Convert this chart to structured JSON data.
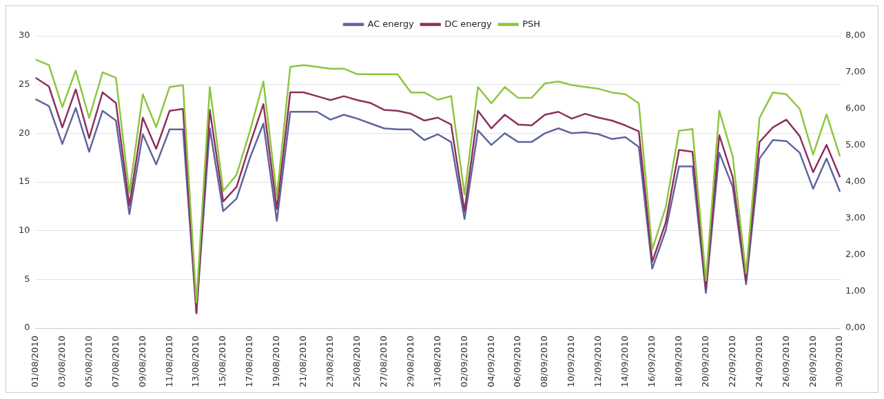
{
  "chart_data": {
    "type": "line",
    "categories": [
      "01/08/2010",
      null,
      "03/08/2010",
      null,
      "05/08/2010",
      null,
      "07/08/2010",
      null,
      "09/08/2010",
      null,
      "11/08/2010",
      null,
      "13/08/2010",
      null,
      "15/08/2010",
      null,
      "17/08/2010",
      null,
      "19/08/2010",
      null,
      "21/08/2010",
      null,
      "23/08/2010",
      null,
      "25/08/2010",
      null,
      "27/08/2010",
      null,
      "29/08/2010",
      null,
      "31/08/2010",
      null,
      "02/09/2010",
      null,
      "04/09/2010",
      null,
      "06/09/2010",
      null,
      "08/09/2010",
      null,
      "10/09/2010",
      null,
      "12/09/2010",
      null,
      "14/09/2010",
      null,
      "16/09/2010",
      null,
      "18/09/2010",
      null,
      "20/09/2010",
      null,
      "22/09/2010",
      null,
      "24/09/2010",
      null,
      "26/09/2010",
      null,
      "28/09/2010",
      null,
      "30/09/2010"
    ],
    "series": [
      {
        "name": "AC energy",
        "color": "#5d659c",
        "values": [
          23.5,
          22.8,
          18.9,
          22.6,
          18.1,
          22.3,
          21.3,
          11.7,
          19.9,
          16.8,
          20.4,
          20.4,
          1.5,
          20.5,
          12.0,
          13.3,
          17.5,
          21.0,
          11.0,
          22.2,
          22.2,
          22.2,
          21.4,
          21.9,
          21.5,
          21.0,
          20.5,
          20.4,
          20.4,
          19.3,
          19.9,
          19.1,
          11.2,
          20.3,
          18.8,
          20.0,
          19.1,
          19.1,
          20.0,
          20.5,
          20.0,
          20.1,
          19.9,
          19.4,
          19.6,
          18.6,
          6.1,
          10.0,
          16.6,
          16.6,
          3.6,
          18.0,
          14.5,
          4.5,
          17.4,
          19.3,
          19.2,
          18.0,
          14.3,
          17.4,
          14.0
        ]
      },
      {
        "name": "DC energy",
        "color": "#8e2f5e",
        "values": [
          25.7,
          24.8,
          20.6,
          24.5,
          19.5,
          24.2,
          23.1,
          12.6,
          21.6,
          18.4,
          22.3,
          22.5,
          1.6,
          22.4,
          13.0,
          14.5,
          18.9,
          23.0,
          12.2,
          24.2,
          24.2,
          23.8,
          23.4,
          23.8,
          23.4,
          23.1,
          22.4,
          22.3,
          22.0,
          21.3,
          21.6,
          20.9,
          12.0,
          22.3,
          20.5,
          21.9,
          20.9,
          20.8,
          21.9,
          22.2,
          21.5,
          22.0,
          21.6,
          21.3,
          20.8,
          20.2,
          6.8,
          10.8,
          18.3,
          18.1,
          4.0,
          19.8,
          15.5,
          4.9,
          19.1,
          20.6,
          21.4,
          19.7,
          16.0,
          18.8,
          15.5
        ]
      },
      {
        "name": "PSH",
        "color": "#8cc63f",
        "axis": "y2",
        "values": [
          7.35,
          7.2,
          6.05,
          7.05,
          5.75,
          7.0,
          6.85,
          3.7,
          6.4,
          5.5,
          6.6,
          6.65,
          0.7,
          6.6,
          3.75,
          4.2,
          5.4,
          6.75,
          3.6,
          7.15,
          7.2,
          7.15,
          7.1,
          7.1,
          6.95,
          6.95,
          6.95,
          6.95,
          6.45,
          6.45,
          6.25,
          6.35,
          3.65,
          6.6,
          6.15,
          6.6,
          6.3,
          6.3,
          6.7,
          6.75,
          6.65,
          6.6,
          6.55,
          6.45,
          6.4,
          6.15,
          2.15,
          3.3,
          5.4,
          5.45,
          1.3,
          5.95,
          4.7,
          1.5,
          5.75,
          6.45,
          6.4,
          6.0,
          4.75,
          5.85,
          4.7
        ]
      }
    ],
    "ylim": [
      0,
      30
    ],
    "yticks": [
      0,
      5,
      10,
      15,
      20,
      25,
      30
    ],
    "y2lim": [
      0,
      8
    ],
    "y2ticks": [
      {
        "value": 0,
        "label": "0,00"
      },
      {
        "value": 1,
        "label": "1,00"
      },
      {
        "value": 2,
        "label": "2,00"
      },
      {
        "value": 3,
        "label": "3,00"
      },
      {
        "value": 4,
        "label": "4,00"
      },
      {
        "value": 5,
        "label": "5,00"
      },
      {
        "value": 6,
        "label": "6,00"
      },
      {
        "value": 7,
        "label": "7,00"
      },
      {
        "value": 8,
        "label": "8,00"
      }
    ],
    "grid": "y",
    "legend": "top",
    "marker": "none",
    "line_style": "solid"
  }
}
